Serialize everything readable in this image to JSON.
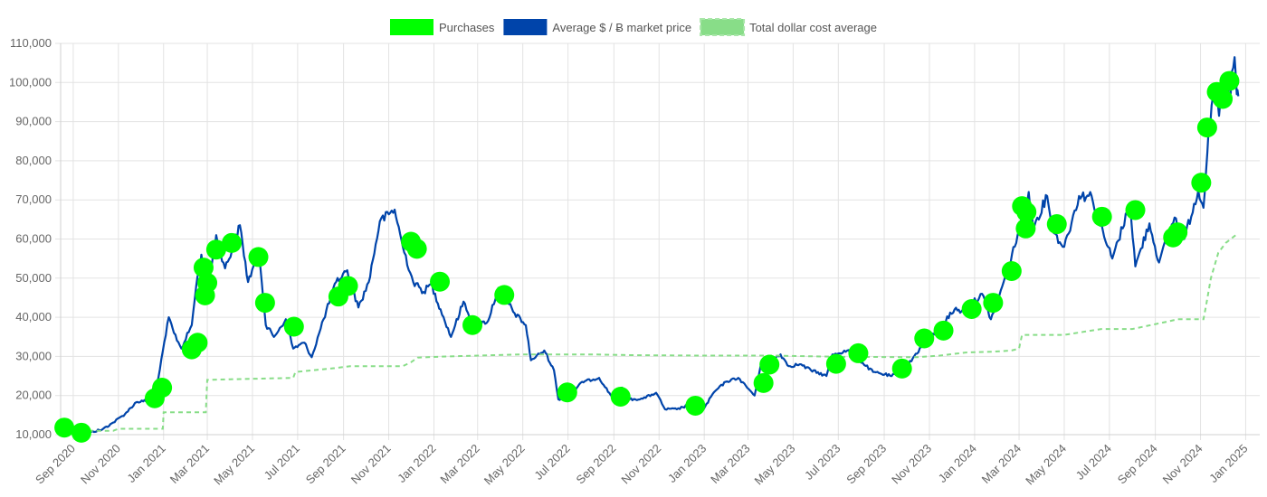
{
  "chart_data": {
    "type": "line",
    "legend": {
      "placement": "top-center",
      "items": [
        {
          "label": "Purchases",
          "color": "#00ff00",
          "style": "filled-box"
        },
        {
          "label": "Average $ / Ƀ market price",
          "color": "#0044aa",
          "style": "filled-box"
        },
        {
          "label": "Total dollar cost average",
          "color": "#88dd88",
          "style": "dashed-box"
        }
      ]
    },
    "x_axis": {
      "type": "time",
      "range": [
        "2020-08-15",
        "2025-01-20"
      ],
      "tick_labels": [
        {
          "date": "2020-09-01",
          "label": "Sep 2020"
        },
        {
          "date": "2020-11-01",
          "label": "Nov 2020"
        },
        {
          "date": "2021-01-01",
          "label": "Jan 2021"
        },
        {
          "date": "2021-03-01",
          "label": "Mar 2021"
        },
        {
          "date": "2021-05-01",
          "label": "May 2021"
        },
        {
          "date": "2021-07-01",
          "label": "Jul 2021"
        },
        {
          "date": "2021-09-01",
          "label": "Sep 2021"
        },
        {
          "date": "2021-11-01",
          "label": "Nov 2021"
        },
        {
          "date": "2022-01-01",
          "label": "Jan 2022"
        },
        {
          "date": "2022-03-01",
          "label": "Mar 2022"
        },
        {
          "date": "2022-05-01",
          "label": "May 2022"
        },
        {
          "date": "2022-07-01",
          "label": "Jul 2022"
        },
        {
          "date": "2022-09-01",
          "label": "Sep 2022"
        },
        {
          "date": "2022-11-01",
          "label": "Nov 2022"
        },
        {
          "date": "2023-01-01",
          "label": "Jan 2023"
        },
        {
          "date": "2023-03-01",
          "label": "Mar 2023"
        },
        {
          "date": "2023-05-01",
          "label": "May 2023"
        },
        {
          "date": "2023-07-01",
          "label": "Jul 2023"
        },
        {
          "date": "2023-09-01",
          "label": "Sep 2023"
        },
        {
          "date": "2023-11-01",
          "label": "Nov 2023"
        },
        {
          "date": "2024-01-01",
          "label": "Jan 2024"
        },
        {
          "date": "2024-03-01",
          "label": "Mar 2024"
        },
        {
          "date": "2024-05-01",
          "label": "May 2024"
        },
        {
          "date": "2024-07-01",
          "label": "Jul 2024"
        },
        {
          "date": "2024-09-01",
          "label": "Sep 2024"
        },
        {
          "date": "2024-11-01",
          "label": "Nov 2024"
        },
        {
          "date": "2025-01-01",
          "label": "Jan 2025"
        }
      ]
    },
    "y_axis": {
      "range": [
        10000,
        110000
      ],
      "ticks": [
        10000,
        20000,
        30000,
        40000,
        50000,
        60000,
        70000,
        80000,
        90000,
        100000,
        110000
      ],
      "tick_labels": [
        "10,000",
        "20,000",
        "30,000",
        "40,000",
        "50,000",
        "60,000",
        "70,000",
        "80,000",
        "90,000",
        "100,000",
        "110,000"
      ]
    },
    "grid": true,
    "series": [
      {
        "name": "Average $ / Ƀ market price",
        "kind": "line",
        "color": "#0044aa",
        "points": [
          [
            "2020-08-20",
            11800
          ],
          [
            "2020-09-05",
            10300
          ],
          [
            "2020-09-25",
            10700
          ],
          [
            "2020-10-10",
            11300
          ],
          [
            "2020-10-25",
            13100
          ],
          [
            "2020-11-10",
            15300
          ],
          [
            "2020-11-25",
            18300
          ],
          [
            "2020-12-10",
            18700
          ],
          [
            "2020-12-25",
            24500
          ],
          [
            "2021-01-08",
            40000
          ],
          [
            "2021-01-15",
            36000
          ],
          [
            "2021-01-25",
            32000
          ],
          [
            "2021-02-08",
            38000
          ],
          [
            "2021-02-14",
            48000
          ],
          [
            "2021-02-21",
            56000
          ],
          [
            "2021-02-28",
            45000
          ],
          [
            "2021-03-13",
            61000
          ],
          [
            "2021-03-25",
            52500
          ],
          [
            "2021-04-05",
            58000
          ],
          [
            "2021-04-14",
            63500
          ],
          [
            "2021-04-25",
            49000
          ],
          [
            "2021-05-10",
            57000
          ],
          [
            "2021-05-19",
            38000
          ],
          [
            "2021-05-30",
            35000
          ],
          [
            "2021-06-15",
            39500
          ],
          [
            "2021-06-25",
            32000
          ],
          [
            "2021-07-10",
            33500
          ],
          [
            "2021-07-20",
            29800
          ],
          [
            "2021-08-05",
            39500
          ],
          [
            "2021-08-22",
            49000
          ],
          [
            "2021-09-06",
            52000
          ],
          [
            "2021-09-21",
            42500
          ],
          [
            "2021-10-05",
            49000
          ],
          [
            "2021-10-20",
            64500
          ],
          [
            "2021-11-09",
            67500
          ],
          [
            "2021-11-20",
            58000
          ],
          [
            "2021-12-04",
            49000
          ],
          [
            "2021-12-18",
            46500
          ],
          [
            "2021-12-28",
            48500
          ],
          [
            "2022-01-10",
            42000
          ],
          [
            "2022-01-24",
            35000
          ],
          [
            "2022-02-10",
            44000
          ],
          [
            "2022-02-24",
            38000
          ],
          [
            "2022-03-15",
            39000
          ],
          [
            "2022-03-29",
            47500
          ],
          [
            "2022-04-20",
            41000
          ],
          [
            "2022-05-05",
            38000
          ],
          [
            "2022-05-12",
            29000
          ],
          [
            "2022-05-30",
            31500
          ],
          [
            "2022-06-12",
            26500
          ],
          [
            "2022-06-18",
            19000
          ],
          [
            "2022-07-05",
            20000
          ],
          [
            "2022-07-20",
            23500
          ],
          [
            "2022-08-12",
            24500
          ],
          [
            "2022-08-28",
            20000
          ],
          [
            "2022-09-12",
            22000
          ],
          [
            "2022-09-22",
            19000
          ],
          [
            "2022-10-10",
            19200
          ],
          [
            "2022-10-28",
            20700
          ],
          [
            "2022-11-09",
            16500
          ],
          [
            "2022-11-25",
            16500
          ],
          [
            "2022-12-15",
            17800
          ],
          [
            "2022-12-31",
            16500
          ],
          [
            "2023-01-14",
            20800
          ],
          [
            "2023-01-30",
            23500
          ],
          [
            "2023-02-16",
            24500
          ],
          [
            "2023-03-10",
            20000
          ],
          [
            "2023-03-18",
            27500
          ],
          [
            "2023-04-14",
            30500
          ],
          [
            "2023-04-25",
            27500
          ],
          [
            "2023-05-10",
            28000
          ],
          [
            "2023-05-25",
            26500
          ],
          [
            "2023-06-15",
            25000
          ],
          [
            "2023-06-23",
            30500
          ],
          [
            "2023-07-13",
            31500
          ],
          [
            "2023-07-28",
            29300
          ],
          [
            "2023-08-17",
            26000
          ],
          [
            "2023-09-11",
            25000
          ],
          [
            "2023-09-30",
            27000
          ],
          [
            "2023-10-23",
            33000
          ],
          [
            "2023-11-15",
            37500
          ],
          [
            "2023-12-05",
            42000
          ],
          [
            "2023-12-18",
            41500
          ],
          [
            "2024-01-11",
            46000
          ],
          [
            "2024-01-23",
            39500
          ],
          [
            "2024-02-15",
            52000
          ],
          [
            "2024-02-28",
            61000
          ],
          [
            "2024-03-14",
            72000
          ],
          [
            "2024-03-20",
            63000
          ],
          [
            "2024-04-08",
            71000
          ],
          [
            "2024-04-17",
            61500
          ],
          [
            "2024-05-01",
            58000
          ],
          [
            "2024-05-21",
            71000
          ],
          [
            "2024-06-07",
            71000
          ],
          [
            "2024-06-24",
            60500
          ],
          [
            "2024-07-05",
            55000
          ],
          [
            "2024-07-29",
            69000
          ],
          [
            "2024-08-05",
            53000
          ],
          [
            "2024-08-24",
            64000
          ],
          [
            "2024-09-06",
            54000
          ],
          [
            "2024-09-27",
            65500
          ],
          [
            "2024-10-10",
            60000
          ],
          [
            "2024-10-29",
            72500
          ],
          [
            "2024-11-05",
            68000
          ],
          [
            "2024-11-12",
            88000
          ],
          [
            "2024-11-22",
            99000
          ],
          [
            "2024-11-26",
            91500
          ],
          [
            "2024-12-05",
            101000
          ],
          [
            "2024-12-10",
            96000
          ],
          [
            "2024-12-17",
            106500
          ],
          [
            "2024-12-20",
            97000
          ],
          [
            "2024-12-22",
            96500
          ]
        ]
      },
      {
        "name": "Total dollar cost average",
        "kind": "step-line",
        "color": "#88dd88",
        "dashed": true,
        "points": [
          [
            "2020-08-20",
            11800
          ],
          [
            "2020-09-10",
            11000
          ],
          [
            "2020-10-25",
            11000
          ],
          [
            "2020-11-01",
            11500
          ],
          [
            "2020-12-31",
            11500
          ],
          [
            "2021-01-01",
            15700
          ],
          [
            "2021-02-27",
            15700
          ],
          [
            "2021-03-01",
            24000
          ],
          [
            "2021-04-14",
            24200
          ],
          [
            "2021-06-25",
            24500
          ],
          [
            "2021-06-28",
            26000
          ],
          [
            "2021-08-20",
            27000
          ],
          [
            "2021-09-10",
            27500
          ],
          [
            "2021-11-20",
            27500
          ],
          [
            "2021-12-01",
            28500
          ],
          [
            "2021-12-10",
            29700
          ],
          [
            "2022-01-20",
            30000
          ],
          [
            "2022-05-01",
            30500
          ],
          [
            "2022-08-01",
            30500
          ],
          [
            "2022-10-01",
            30300
          ],
          [
            "2023-01-01",
            30200
          ],
          [
            "2023-04-01",
            30200
          ],
          [
            "2023-07-01",
            29900
          ],
          [
            "2023-10-15",
            29800
          ],
          [
            "2023-11-15",
            30200
          ],
          [
            "2023-12-20",
            31000
          ],
          [
            "2024-01-25",
            31200
          ],
          [
            "2024-02-20",
            31500
          ],
          [
            "2024-03-01",
            32000
          ],
          [
            "2024-03-05",
            35500
          ],
          [
            "2024-05-01",
            35500
          ],
          [
            "2024-06-20",
            37000
          ],
          [
            "2024-08-01",
            37000
          ],
          [
            "2024-09-20",
            39000
          ],
          [
            "2024-10-01",
            39500
          ],
          [
            "2024-11-05",
            39500
          ],
          [
            "2024-11-08",
            42500
          ],
          [
            "2024-11-15",
            50000
          ],
          [
            "2024-11-25",
            56500
          ],
          [
            "2024-12-05",
            59000
          ],
          [
            "2024-12-22",
            61500
          ]
        ]
      },
      {
        "name": "Purchases",
        "kind": "scatter",
        "color": "#00ff00",
        "points": [
          [
            "2020-08-20",
            11800
          ],
          [
            "2020-09-12",
            10500
          ],
          [
            "2020-12-20",
            19300
          ],
          [
            "2020-12-30",
            22000
          ],
          [
            "2021-02-08",
            31800
          ],
          [
            "2021-02-16",
            33500
          ],
          [
            "2021-02-24",
            52700
          ],
          [
            "2021-02-26",
            45600
          ],
          [
            "2021-03-01",
            48800
          ],
          [
            "2021-03-13",
            57300
          ],
          [
            "2021-04-03",
            59000
          ],
          [
            "2021-05-09",
            55400
          ],
          [
            "2021-05-18",
            43700
          ],
          [
            "2021-06-26",
            37600
          ],
          [
            "2021-08-25",
            45300
          ],
          [
            "2021-09-07",
            48000
          ],
          [
            "2021-12-01",
            59300
          ],
          [
            "2021-12-09",
            57500
          ],
          [
            "2022-01-09",
            49100
          ],
          [
            "2022-02-22",
            38000
          ],
          [
            "2022-04-06",
            45700
          ],
          [
            "2022-06-30",
            20800
          ],
          [
            "2022-09-10",
            19700
          ],
          [
            "2022-12-20",
            17400
          ],
          [
            "2023-03-22",
            23200
          ],
          [
            "2023-03-30",
            27900
          ],
          [
            "2023-06-28",
            28100
          ],
          [
            "2023-07-28",
            30800
          ],
          [
            "2023-09-25",
            26900
          ],
          [
            "2023-10-25",
            34600
          ],
          [
            "2023-11-20",
            36600
          ],
          [
            "2023-12-28",
            42100
          ],
          [
            "2024-01-26",
            43700
          ],
          [
            "2024-02-20",
            51800
          ],
          [
            "2024-03-05",
            68400
          ],
          [
            "2024-03-10",
            62700
          ],
          [
            "2024-03-11",
            66900
          ],
          [
            "2024-04-21",
            63800
          ],
          [
            "2024-06-21",
            65700
          ],
          [
            "2024-08-05",
            67400
          ],
          [
            "2024-09-25",
            60400
          ],
          [
            "2024-10-01",
            61700
          ],
          [
            "2024-11-02",
            74400
          ],
          [
            "2024-11-10",
            88500
          ],
          [
            "2024-11-23",
            97600
          ],
          [
            "2024-12-01",
            95800
          ],
          [
            "2024-12-10",
            100400
          ]
        ]
      }
    ]
  }
}
